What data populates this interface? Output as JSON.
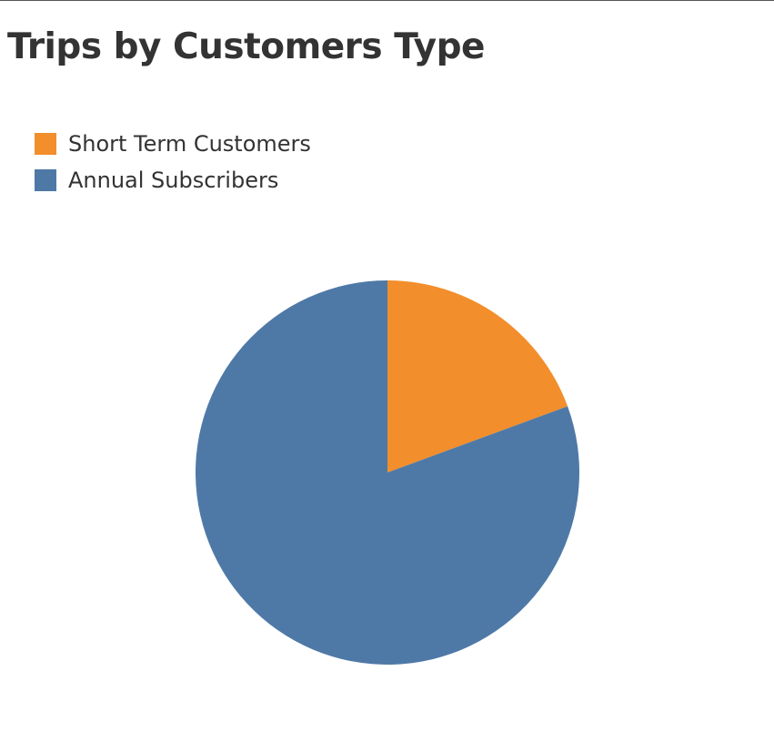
{
  "chart_data": {
    "type": "pie",
    "title": "Trips by Customers Type",
    "legend": "top-left",
    "series": [
      {
        "name": "Short Term Customers",
        "value": 19.4,
        "color": "#f28e2b"
      },
      {
        "name": "Annual Subscribers",
        "value": 80.6,
        "color": "#4e79a7"
      }
    ]
  }
}
